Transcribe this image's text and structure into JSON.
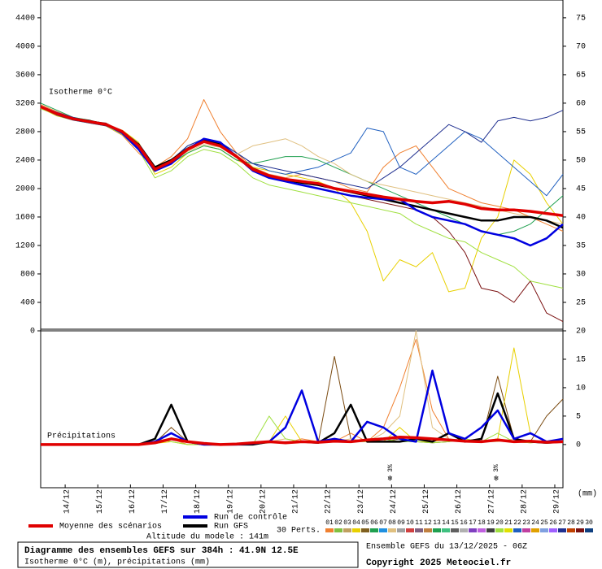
{
  "chart_data": [
    {
      "type": "line",
      "title": "Isotherme 0°C",
      "x": [
        0,
        12,
        24,
        36,
        48,
        60,
        72,
        84,
        96,
        108,
        120,
        132,
        144,
        156,
        168,
        180,
        192,
        204,
        216,
        228,
        240,
        252,
        264,
        276,
        288,
        300,
        312,
        324,
        336,
        348,
        360,
        372,
        384
      ],
      "xlim": [
        0,
        384
      ],
      "ylim": [
        0,
        4650
      ],
      "yticks": [
        0,
        400,
        800,
        1200,
        1600,
        2000,
        2400,
        2800,
        3200,
        3600,
        4000,
        4400
      ],
      "y2lim": [
        20,
        78.125
      ],
      "y2ticks": [
        25,
        30,
        35,
        40,
        45,
        50,
        55,
        60,
        65,
        70,
        75
      ],
      "series": [
        {
          "color": "#f08030",
          "values": [
            3180,
            3080,
            3000,
            2950,
            2880,
            2750,
            2500,
            2300,
            2450,
            2700,
            3250,
            2800,
            2500,
            2300,
            2200,
            2150,
            2200,
            2150,
            2100,
            2000,
            1950,
            2300,
            2500,
            2600,
            2300,
            2000,
            1900,
            1800,
            1750,
            1700,
            1600,
            1500,
            1400
          ]
        },
        {
          "color": "#e8d000",
          "values": [
            3130,
            3020,
            2960,
            2920,
            2900,
            2820,
            2650,
            2200,
            2300,
            2500,
            2600,
            2550,
            2400,
            2300,
            2250,
            2200,
            2150,
            2100,
            2000,
            1800,
            1400,
            700,
            1000,
            900,
            1100,
            550,
            600,
            1300,
            1600,
            2400,
            2200,
            1800,
            1500
          ]
        },
        {
          "color": "#7a1010",
          "values": [
            3160,
            3060,
            2990,
            2950,
            2920,
            2800,
            2600,
            2300,
            2400,
            2550,
            2700,
            2650,
            2450,
            2250,
            2150,
            2100,
            2050,
            2000,
            1950,
            1900,
            1850,
            1800,
            1750,
            1700,
            1600,
            1400,
            1100,
            600,
            550,
            400,
            700,
            250,
            130
          ]
        },
        {
          "color": "#2060c0",
          "values": [
            3150,
            3040,
            2970,
            2930,
            2890,
            2780,
            2580,
            2250,
            2350,
            2600,
            2700,
            2650,
            2500,
            2350,
            2250,
            2200,
            2250,
            2300,
            2400,
            2500,
            2850,
            2800,
            2300,
            2200,
            2400,
            2600,
            2800,
            2700,
            2500,
            2300,
            2100,
            1900,
            2200
          ]
        },
        {
          "color": "#20a050",
          "values": [
            3200,
            3100,
            3000,
            2960,
            2900,
            2800,
            2600,
            2250,
            2350,
            2500,
            2600,
            2550,
            2400,
            2350,
            2400,
            2450,
            2450,
            2400,
            2300,
            2200,
            2100,
            2000,
            1900,
            1800,
            1700,
            1600,
            1500,
            1400,
            1350,
            1400,
            1500,
            1700,
            1900
          ]
        },
        {
          "color": "#a0e040",
          "values": [
            3120,
            3040,
            2970,
            2920,
            2880,
            2760,
            2540,
            2150,
            2250,
            2450,
            2550,
            2500,
            2350,
            2150,
            2050,
            2000,
            1950,
            1900,
            1850,
            1800,
            1750,
            1700,
            1650,
            1500,
            1400,
            1300,
            1250,
            1100,
            1000,
            900,
            700,
            650,
            600
          ]
        },
        {
          "color": "#203090",
          "values": [
            3140,
            3030,
            2960,
            2920,
            2880,
            2790,
            2600,
            2280,
            2400,
            2600,
            2700,
            2650,
            2500,
            2350,
            2300,
            2250,
            2200,
            2150,
            2100,
            2050,
            2000,
            2150,
            2300,
            2500,
            2700,
            2900,
            2800,
            2650,
            2950,
            3000,
            2950,
            3000,
            3100
          ]
        },
        {
          "color": "#e0c080",
          "values": [
            3140,
            3040,
            2970,
            2930,
            2890,
            2790,
            2580,
            2250,
            2360,
            2520,
            2620,
            2580,
            2480,
            2600,
            2650,
            2700,
            2600,
            2450,
            2350,
            2200,
            2100,
            2050,
            2000,
            1950,
            1900,
            1850,
            1800,
            1750,
            1700,
            1650,
            1600,
            1550,
            1500
          ]
        },
        {
          "name": "Run GFS",
          "color": "#000000",
          "values": [
            3150,
            3050,
            2980,
            2950,
            2900,
            2800,
            2620,
            2300,
            2400,
            2560,
            2680,
            2620,
            2450,
            2280,
            2180,
            2120,
            2080,
            2050,
            2000,
            1950,
            1900,
            1850,
            1800,
            1750,
            1700,
            1650,
            1600,
            1550,
            1550,
            1600,
            1600,
            1550,
            1450
          ]
        },
        {
          "name": "Run de contrôle",
          "color": "#0000e0",
          "values": [
            3150,
            3060,
            2990,
            2940,
            2900,
            2780,
            2550,
            2250,
            2350,
            2550,
            2700,
            2650,
            2450,
            2250,
            2150,
            2100,
            2050,
            2000,
            1950,
            1900,
            1870,
            1850,
            1850,
            1700,
            1600,
            1550,
            1500,
            1400,
            1350,
            1300,
            1200,
            1300,
            1500
          ]
        },
        {
          "name": "Moyenne des scénarios",
          "color": "#e00000",
          "values": [
            3150,
            3050,
            2980,
            2940,
            2900,
            2800,
            2600,
            2270,
            2380,
            2550,
            2660,
            2600,
            2450,
            2270,
            2180,
            2130,
            2100,
            2070,
            2000,
            1960,
            1920,
            1880,
            1850,
            1820,
            1800,
            1820,
            1780,
            1720,
            1700,
            1700,
            1680,
            1650,
            1620
          ]
        }
      ]
    },
    {
      "type": "line",
      "title": "Précipitations",
      "unit": "(mm)",
      "x": [
        0,
        12,
        24,
        36,
        48,
        60,
        72,
        84,
        96,
        108,
        120,
        132,
        144,
        156,
        168,
        180,
        192,
        204,
        216,
        228,
        240,
        252,
        264,
        276,
        288,
        300,
        312,
        324,
        336,
        348,
        360,
        372,
        384
      ],
      "xlim": [
        0,
        384
      ],
      "xticks": [
        {
          "value": 18,
          "label": "14/12"
        },
        {
          "value": 42,
          "label": "15/12"
        },
        {
          "value": 66,
          "label": "16/12"
        },
        {
          "value": 90,
          "label": "17/12"
        },
        {
          "value": 114,
          "label": "18/12"
        },
        {
          "value": 138,
          "label": "19/12"
        },
        {
          "value": 162,
          "label": "20/12"
        },
        {
          "value": 186,
          "label": "21/12"
        },
        {
          "value": 210,
          "label": "22/12"
        },
        {
          "value": 234,
          "label": "23/12"
        },
        {
          "value": 258,
          "label": "24/12"
        },
        {
          "value": 282,
          "label": "25/12"
        },
        {
          "value": 306,
          "label": "26/12"
        },
        {
          "value": 330,
          "label": "27/12"
        },
        {
          "value": 354,
          "label": "28/12"
        },
        {
          "value": 378,
          "label": "29/12"
        }
      ],
      "ylim": [
        -7.6,
        20
      ],
      "y2ticks": [
        0,
        5,
        10,
        15,
        20
      ],
      "annotations": [
        {
          "x": 257,
          "label": "3%"
        },
        {
          "x": 335,
          "label": "3%"
        }
      ],
      "series": [
        {
          "color": "#f08030",
          "values": [
            0,
            0,
            0,
            0,
            0,
            0,
            0,
            0.5,
            1,
            0,
            0,
            0,
            0,
            0,
            0.5,
            0.3,
            1,
            0.5,
            0.5,
            2,
            0.5,
            3,
            10,
            18.5,
            6,
            1,
            0.5,
            0.5,
            1,
            0.5,
            0.3,
            0.5,
            1
          ]
        },
        {
          "color": "#7a4a10",
          "values": [
            0,
            0,
            0,
            0,
            0,
            0,
            0,
            0.3,
            3,
            0.5,
            0,
            0,
            0,
            0,
            0.3,
            0.5,
            0.5,
            0.3,
            15.5,
            1,
            0.5,
            0.5,
            1,
            0.5,
            0.3,
            0.5,
            1,
            0.5,
            12,
            1,
            0.5,
            5,
            8
          ]
        },
        {
          "color": "#e8d000",
          "values": [
            0,
            0,
            0,
            0,
            0,
            0,
            0,
            0.2,
            0.5,
            0,
            0,
            0,
            0,
            0,
            0.5,
            5,
            0.5,
            0.3,
            0.5,
            0.5,
            1,
            0.5,
            3,
            0.5,
            0.5,
            1,
            0.5,
            0.5,
            1,
            17,
            2,
            0.5,
            0.5
          ]
        },
        {
          "color": "#e0c080",
          "values": [
            0,
            0,
            0,
            0,
            0,
            0,
            0,
            0.3,
            2,
            0.5,
            0,
            0,
            0,
            0.3,
            0.5,
            1,
            0.5,
            0.3,
            0.5,
            1,
            0.5,
            2,
            5,
            20,
            3,
            1,
            0.5,
            0.5,
            0.5,
            1,
            0.5,
            0.3,
            0.5
          ]
        },
        {
          "color": "#a0e040",
          "values": [
            0,
            0,
            0,
            0,
            0,
            0,
            0,
            1,
            0.5,
            0,
            0,
            0,
            0,
            0,
            5,
            1,
            0.5,
            0.3,
            0.5,
            0.5,
            0.5,
            1,
            0.5,
            0.5,
            0.3,
            0.5,
            1,
            0.5,
            2,
            0.5,
            0.3,
            0.5,
            0.5
          ]
        },
        {
          "color": "#000000",
          "values": [
            0,
            0,
            0,
            0,
            0,
            0,
            0,
            1,
            7,
            0.5,
            0,
            0,
            0,
            0,
            0.5,
            0.3,
            0.5,
            0.3,
            2,
            7,
            0.5,
            0.5,
            0.5,
            1,
            0.5,
            2,
            0.5,
            1,
            9,
            1,
            0.5,
            0.3,
            0.5
          ]
        },
        {
          "color": "#0000e0",
          "values": [
            0,
            0,
            0,
            0,
            0,
            0,
            0,
            0.5,
            2,
            0.5,
            0,
            0,
            0,
            0.2,
            0.5,
            3,
            9.5,
            0.5,
            1,
            0.5,
            4,
            3,
            1,
            0.5,
            13,
            2,
            1,
            3,
            6,
            1,
            2,
            0.5,
            1
          ]
        },
        {
          "color": "#e00000",
          "values": [
            0,
            0,
            0,
            0,
            0,
            0,
            0,
            0.3,
            1,
            0.5,
            0.2,
            0,
            0.1,
            0.3,
            0.5,
            0.3,
            0.5,
            0.4,
            0.6,
            0.5,
            0.8,
            1,
            1.3,
            1.2,
            1,
            0.8,
            0.6,
            0.5,
            0.8,
            0.5,
            0.6,
            0.4,
            0.5
          ]
        }
      ]
    }
  ],
  "perturbations": {
    "label": "30 Perts.",
    "names": [
      "01",
      "02",
      "03",
      "04",
      "05",
      "06",
      "07",
      "08",
      "09",
      "10",
      "11",
      "12",
      "13",
      "14",
      "15",
      "16",
      "17",
      "18",
      "19",
      "20",
      "21",
      "22",
      "23",
      "24",
      "25",
      "26",
      "27",
      "28",
      "29",
      "30"
    ],
    "colors": [
      "#f08030",
      "#80c040",
      "#c0a060",
      "#e8d000",
      "#806020",
      "#20a050",
      "#2090e0",
      "#e0c080",
      "#a0a0a0",
      "#d04040",
      "#806080",
      "#c08040",
      "#20a050",
      "#40c080",
      "#606060",
      "#b0b0b0",
      "#8040c0",
      "#c060e0",
      "#404040",
      "#a0e040",
      "#e0e000",
      "#2060c0",
      "#c040a0",
      "#e0a000",
      "#80a0e0",
      "#a060ff",
      "#203090",
      "#c04000",
      "#7a1010",
      "#104080"
    ]
  },
  "model_altitude": "Altitude du modele : 141m",
  "footer": {
    "title": "Diagramme des ensembles GEFS sur 384h : 41.9N 12.5E",
    "subtitle": "Isotherme 0°C (m), précipitations (mm)",
    "run": "Ensemble GEFS du 13/12/2025 - 06Z",
    "copyright": "Copyright 2025 Meteociel.fr"
  }
}
